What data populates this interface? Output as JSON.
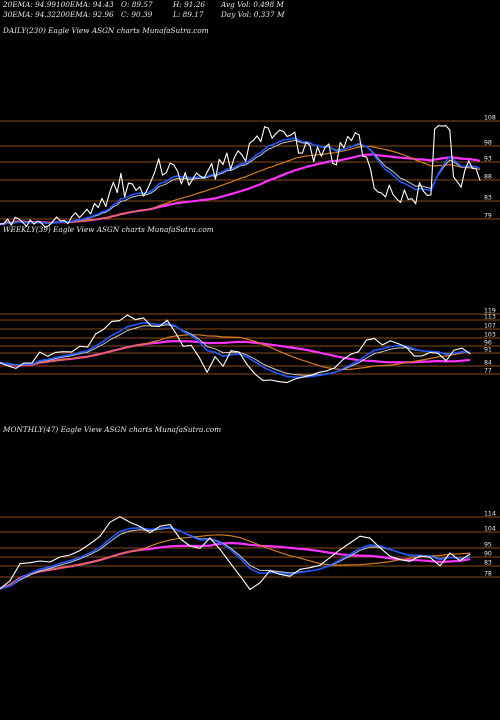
{
  "header": {
    "ema20": "20EMA: 94.99",
    "ema100": "100EMA: 94.43",
    "open": "O: 89.57",
    "high": "H: 91.26",
    "avgvol": "Avg Vol: 0.498 M",
    "ema30": "30EMA: 94.32",
    "ema200": "200EMA: 92.96",
    "close": "C: 90.39",
    "low": "L: 89.17",
    "dayvol": "Day Vol: 0.337 M"
  },
  "colors": {
    "background": "#000000",
    "price": "#ffffff",
    "level_lines": "#b8641e",
    "ema_short": "#1f56ff",
    "ema_mid": "#c9c9c9",
    "ema_long": "#d47a1e",
    "ema_200": "#ff33ff"
  },
  "chart_data": [
    {
      "type": "line",
      "title": "DAILY(230) Eagle  View  ASGN  charts MunafaSutra.com",
      "tick_labels": [
        "108",
        "98",
        "93",
        "88",
        "83",
        "79"
      ],
      "series": [
        {
          "values": [
            77.5,
            77.6,
            79.0,
            77.2,
            79.5,
            79.0,
            78.0,
            76.8,
            78.7,
            77.5,
            78.4,
            77.7,
            76.5,
            77.1,
            78.3,
            79.6,
            78.4,
            78.6,
            77.6,
            79.7,
            80.8,
            79.4,
            80.5,
            81.9,
            80.5,
            83.6,
            82.4,
            85.1,
            82.7,
            86.8,
            89.9,
            86.8,
            92.5,
            85.6,
            89.6,
            89.4,
            87.5,
            88.5,
            85.8,
            87.8,
            90.3,
            93.1,
            96.8,
            92.0,
            92.7,
            95.5,
            95.0,
            93.1,
            89.4,
            92.7,
            89.0,
            90.8,
            92.6,
            91.7,
            91.1,
            93.3,
            95.4,
            90.8,
            96.6,
            95.1,
            98.5,
            93.7,
            97.1,
            99.2,
            98.0,
            96.1,
            101.3,
            102.2,
            103.6,
            101.9,
            106.3,
            105.9,
            102.9,
            104.3,
            105.3,
            104.9,
            103.4,
            103.9,
            104.7,
            98.5,
            98.5,
            101.7,
            100.8,
            96.0,
            100.3,
            97.6,
            100.1,
            101.2,
            95.5,
            95.0,
            101.6,
            100.1,
            103.4,
            102.2,
            104.5,
            103.9,
            97.6,
            97.3,
            93.9,
            88.1,
            87.0,
            86.7,
            85.5,
            89.0,
            86.2,
            84.9,
            83.9,
            87.6,
            84.8,
            85.0,
            83.5,
            89.8,
            87.3,
            86.0,
            86.1,
            105.6,
            106.6,
            106.5,
            106.6,
            105.3,
            91.5,
            90.0,
            88.4,
            93.5,
            96.2,
            94.0,
            93.8,
            90.4
          ]
        }
      ]
    },
    {
      "type": "line",
      "title": "WEEKLY(39) Eagle  View  ASGN  charts MunafaSutra.com",
      "tick_labels": [
        "119",
        "113",
        "107",
        "103",
        "96",
        "91",
        "84",
        "77"
      ],
      "series": [
        {
          "values": [
            84.9,
            82.6,
            80.9,
            84.6,
            84.7,
            92.3,
            89.4,
            92.2,
            92.6,
            92.5,
            96.4,
            95.9,
            105.0,
            108.2,
            113.7,
            114.3,
            118.2,
            115.1,
            116.3,
            110.5,
            110.3,
            114.6,
            106.1,
            96.4,
            97.1,
            88.6,
            78.2,
            89.1,
            82.4,
            93.3,
            92.4,
            83.8,
            77.0,
            72.5,
            72.8,
            71.7,
            71.0,
            73.4,
            74.8,
            76.1,
            78.1,
            79.2,
            81.3,
            86.8,
            90.7,
            92.6,
            100.7,
            101.8,
            97.4,
            100.2,
            98.3,
            95.8,
            89.5,
            89.7,
            92.1,
            91.5,
            86.3,
            93.7,
            95.1,
            91.2
          ]
        }
      ]
    },
    {
      "type": "line",
      "title": "MONTHLY(47) Eagle  View  ASGN  charts MunafaSutra.com",
      "tick_labels": [
        "114",
        "104",
        "95",
        "90",
        "83",
        "78"
      ],
      "series": [
        {
          "values": [
            71.0,
            75.7,
            86.0,
            86.6,
            87.6,
            87.0,
            90.0,
            91.2,
            93.9,
            97.9,
            102.4,
            110.9,
            114.2,
            110.8,
            108.3,
            104.6,
            108.5,
            109.5,
            101.1,
            96.6,
            95.2,
            101.4,
            94.7,
            86.5,
            78.7,
            70.5,
            74.5,
            81.8,
            79.6,
            78.5,
            82.6,
            83.6,
            85.0,
            89.7,
            94.4,
            98.4,
            102.5,
            101.3,
            95.5,
            90.5,
            88.4,
            87.4,
            90.6,
            89.8,
            84.7,
            92.4,
            87.8,
            91.8
          ]
        }
      ]
    }
  ]
}
